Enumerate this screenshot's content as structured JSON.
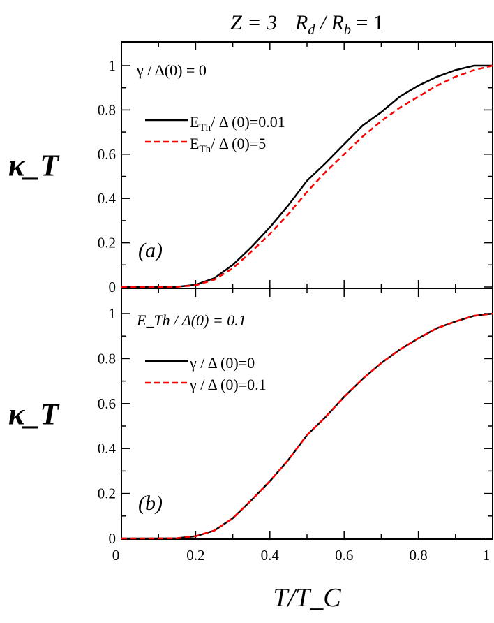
{
  "title": {
    "z": "Z = 3",
    "ratio_main": "R",
    "ratio_sub1": "d",
    "ratio_mid": " / R",
    "ratio_sub2": "b",
    "ratio_end": " = 1"
  },
  "chart_data": [
    {
      "type": "line",
      "panel_label": "(a)",
      "annotation": "γ / Δ(0) = 0",
      "xlabel": "T/T_C",
      "ylabel": "κ_T",
      "xlim": [
        0,
        1
      ],
      "ylim": [
        0,
        1.1
      ],
      "xticks": [
        "0",
        "0.2",
        "0.4",
        "0.6",
        "0.8",
        "1"
      ],
      "yticks": [
        "0",
        "0.2",
        "0.4",
        "0.6",
        "0.8",
        "1"
      ],
      "legend": "upper-left",
      "series": [
        {
          "name": "E_Th/ Δ (0)=0.01",
          "color": "#000000",
          "style": "solid",
          "x": [
            0,
            0.05,
            0.1,
            0.15,
            0.2,
            0.25,
            0.3,
            0.35,
            0.4,
            0.45,
            0.5,
            0.55,
            0.6,
            0.65,
            0.7,
            0.75,
            0.8,
            0.85,
            0.9,
            0.95,
            1.0
          ],
          "y": [
            0,
            0,
            0,
            0.001,
            0.01,
            0.04,
            0.1,
            0.18,
            0.27,
            0.37,
            0.48,
            0.56,
            0.645,
            0.73,
            0.79,
            0.86,
            0.91,
            0.95,
            0.98,
            1.0,
            1.0
          ]
        },
        {
          "name": "E_Th/ Δ (0)=5",
          "color": "#ff0000",
          "style": "dashed",
          "x": [
            0,
            0.05,
            0.1,
            0.15,
            0.2,
            0.25,
            0.3,
            0.35,
            0.4,
            0.45,
            0.5,
            0.55,
            0.6,
            0.65,
            0.7,
            0.75,
            0.8,
            0.85,
            0.9,
            0.95,
            1.0
          ],
          "y": [
            0,
            0,
            0,
            0.001,
            0.008,
            0.033,
            0.085,
            0.16,
            0.24,
            0.33,
            0.43,
            0.52,
            0.6,
            0.68,
            0.75,
            0.81,
            0.86,
            0.91,
            0.95,
            0.98,
            1.0
          ]
        }
      ]
    },
    {
      "type": "line",
      "panel_label": "(b)",
      "annotation": "E_Th / Δ(0) = 0.1",
      "xlabel": "T/T_C",
      "ylabel": "κ_T",
      "xlim": [
        0,
        1
      ],
      "ylim": [
        0,
        1.1
      ],
      "xticks": [
        "0",
        "0.2",
        "0.4",
        "0.6",
        "0.8",
        "1"
      ],
      "yticks": [
        "0",
        "0.2",
        "0.4",
        "0.6",
        "0.8",
        "1"
      ],
      "legend": "upper-left",
      "series": [
        {
          "name": "γ / Δ (0)=0",
          "color": "#000000",
          "style": "solid",
          "x": [
            0,
            0.05,
            0.1,
            0.15,
            0.2,
            0.25,
            0.3,
            0.35,
            0.4,
            0.45,
            0.5,
            0.55,
            0.6,
            0.65,
            0.7,
            0.75,
            0.8,
            0.85,
            0.9,
            0.95,
            1.0
          ],
          "y": [
            0,
            0,
            0,
            0.001,
            0.01,
            0.035,
            0.09,
            0.17,
            0.255,
            0.35,
            0.46,
            0.54,
            0.63,
            0.71,
            0.78,
            0.84,
            0.89,
            0.935,
            0.965,
            0.99,
            1.0
          ]
        },
        {
          "name": "γ / Δ (0)=0.1",
          "color": "#ff0000",
          "style": "dashed",
          "x": [
            0,
            0.05,
            0.1,
            0.15,
            0.2,
            0.25,
            0.3,
            0.35,
            0.4,
            0.45,
            0.5,
            0.55,
            0.6,
            0.65,
            0.7,
            0.75,
            0.8,
            0.85,
            0.9,
            0.95,
            1.0
          ],
          "y": [
            0,
            0,
            0,
            0.001,
            0.01,
            0.035,
            0.09,
            0.17,
            0.255,
            0.35,
            0.46,
            0.54,
            0.63,
            0.71,
            0.78,
            0.84,
            0.89,
            0.935,
            0.965,
            0.99,
            1.0
          ]
        }
      ]
    }
  ]
}
